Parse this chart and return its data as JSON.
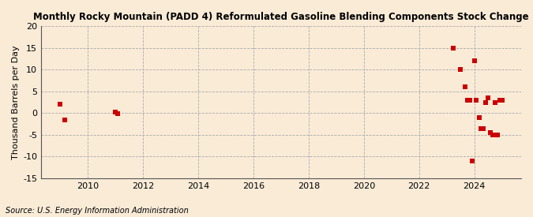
{
  "title": "Monthly Rocky Mountain (PADD 4) Reformulated Gasoline Blending Components Stock Change",
  "ylabel": "Thousand Barrels per Day",
  "source": "Source: U.S. Energy Information Administration",
  "background_color": "#faebd7",
  "plot_background_color": "#faebd7",
  "marker_color": "#cc0000",
  "marker_size": 4,
  "ylim": [
    -15,
    20
  ],
  "yticks": [
    -15,
    -10,
    -5,
    0,
    5,
    10,
    15,
    20
  ],
  "xlim": [
    2008.3,
    2025.7
  ],
  "xticks": [
    2010,
    2012,
    2014,
    2016,
    2018,
    2020,
    2022,
    2024
  ],
  "data_x": [
    2009.0,
    2009.17,
    2011.0,
    2011.08,
    2023.25,
    2023.5,
    2023.67,
    2023.75,
    2023.83,
    2023.92,
    2024.0,
    2024.08,
    2024.17,
    2024.25,
    2024.33,
    2024.42,
    2024.5,
    2024.58,
    2024.67,
    2024.75,
    2024.83,
    2024.92,
    2025.0
  ],
  "data_y": [
    2.0,
    -1.5,
    0.3,
    -0.2,
    15.0,
    10.0,
    6.0,
    3.0,
    3.0,
    -11.0,
    12.0,
    3.0,
    -1.0,
    -3.5,
    -3.5,
    2.5,
    3.5,
    -4.5,
    -5.0,
    2.5,
    -5.0,
    3.0,
    3.0
  ]
}
